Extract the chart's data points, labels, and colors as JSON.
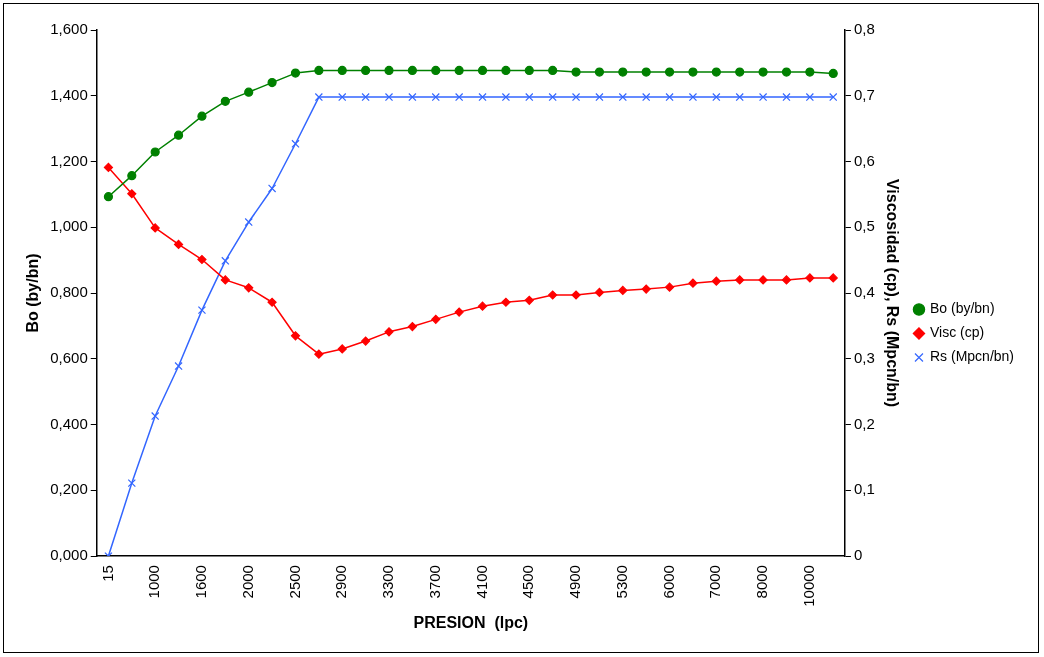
{
  "chart_data": {
    "type": "line",
    "xlabel": "PRESION  (lpc)",
    "ylabel": "Bo (by/bn)",
    "y2label": "Viscosidad (cp), Rs (Mpcn/bn)",
    "categories": [
      "15",
      null,
      "1000",
      null,
      "1600",
      null,
      "2000",
      null,
      "2500",
      null,
      "2900",
      null,
      "3300",
      null,
      "3700",
      null,
      "4100",
      null,
      "4500",
      null,
      "4900",
      null,
      "5300",
      null,
      "6000",
      null,
      "7000",
      null,
      "8000",
      null,
      "10000",
      null
    ],
    "series": [
      {
        "name": "Bo (by/bn)",
        "color": "#008000",
        "marker": "circle",
        "values": [
          1.093,
          1.157,
          1.229,
          1.28,
          1.338,
          1.383,
          1.411,
          1.44,
          1.469,
          1.477,
          1.477,
          1.477,
          1.477,
          1.477,
          1.477,
          1.477,
          1.477,
          1.477,
          1.477,
          1.477,
          1.472,
          1.472,
          1.472,
          1.472,
          1.472,
          1.472,
          1.472,
          1.472,
          1.472,
          1.472,
          1.472,
          1.468
        ]
      },
      {
        "name": "Visc (cp)",
        "color": "#ff0000",
        "marker": "diamond",
        "axis": "y2",
        "values": [
          0.591,
          0.551,
          0.499,
          0.474,
          0.451,
          0.42,
          0.408,
          0.386,
          0.335,
          0.307,
          0.315,
          0.327,
          0.341,
          0.349,
          0.36,
          0.371,
          0.38,
          0.386,
          0.389,
          0.397,
          0.397,
          0.401,
          0.404,
          0.406,
          0.409,
          0.415,
          0.418,
          0.42,
          0.42,
          0.42,
          0.423,
          0.423
        ]
      },
      {
        "name": "Rs (Mpcn/bn)",
        "color": "#3366ff",
        "marker": "cross",
        "axis": "y2",
        "values": [
          0,
          0.111,
          0.213,
          0.289,
          0.374,
          0.449,
          0.508,
          0.559,
          0.627,
          0.698,
          0.698,
          0.698,
          0.698,
          0.698,
          0.698,
          0.698,
          0.698,
          0.698,
          0.698,
          0.698,
          0.698,
          0.698,
          0.698,
          0.698,
          0.698,
          0.698,
          0.698,
          0.698,
          0.698,
          0.698,
          0.698,
          0.698
        ]
      }
    ],
    "ylim": [
      0,
      1.6
    ],
    "yticks": [
      {
        "value": 0,
        "label": "0,000"
      },
      {
        "value": 0.2,
        "label": "0,200"
      },
      {
        "value": 0.4,
        "label": "0,400"
      },
      {
        "value": 0.6,
        "label": "0,600"
      },
      {
        "value": 0.8,
        "label": "0,800"
      },
      {
        "value": 1.0,
        "label": "1,000"
      },
      {
        "value": 1.2,
        "label": "1,200"
      },
      {
        "value": 1.4,
        "label": "1,400"
      },
      {
        "value": 1.6,
        "label": "1,600"
      }
    ],
    "y2lim": [
      0,
      0.8
    ],
    "y2ticks": [
      0,
      {
        "value": 0.1,
        "label": "0,1"
      },
      {
        "value": 0.2,
        "label": "0,2"
      },
      {
        "value": 0.3,
        "label": "0,3"
      },
      {
        "value": 0.4,
        "label": "0,4"
      },
      {
        "value": 0.5,
        "label": "0,5"
      },
      {
        "value": 0.6,
        "label": "0,6"
      },
      {
        "value": 0.7,
        "label": "0,7"
      },
      {
        "value": 0.8,
        "label": "0,8"
      }
    ],
    "grid": false,
    "legend": "right",
    "line_style": "solid"
  }
}
